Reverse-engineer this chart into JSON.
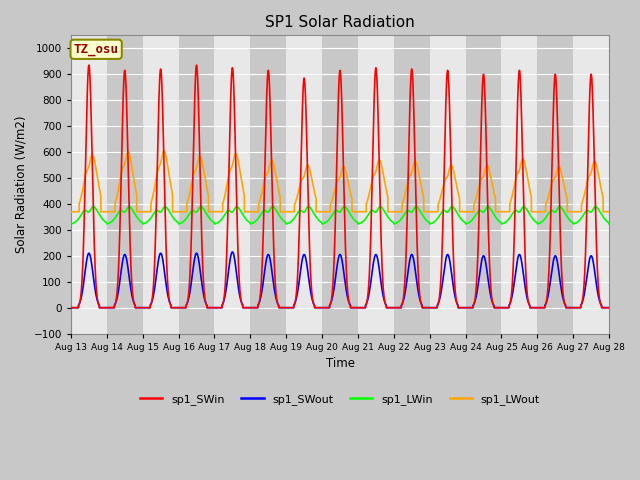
{
  "title": "SP1 Solar Radiation",
  "xlabel": "Time",
  "ylabel": "Solar Radiation (W/m2)",
  "ylim": [
    -100,
    1050
  ],
  "start_day": 13,
  "end_day": 28,
  "timezone_label": "TZ_osu",
  "legend_labels": [
    "sp1_SWin",
    "sp1_SWout",
    "sp1_LWin",
    "sp1_LWout"
  ],
  "legend_colors": [
    "#ff0000",
    "#0000ff",
    "#00ff00",
    "#ffa500"
  ],
  "fig_facecolor": "#c8c8c8",
  "plot_facecolor": "#e0e0e0",
  "band_dark": "#c8c8c8",
  "band_light": "#e8e8e8",
  "grid_color": "#ffffff",
  "sw_in_peaks": [
    935,
    915,
    920,
    935,
    925,
    915,
    885,
    915,
    925,
    920,
    915,
    900,
    915,
    900,
    900
  ],
  "sw_out_peaks": [
    210,
    205,
    210,
    210,
    215,
    205,
    205,
    205,
    205,
    205,
    205,
    200,
    205,
    200,
    200
  ],
  "lw_out_peaks": [
    600,
    612,
    615,
    595,
    605,
    580,
    560,
    555,
    580,
    575,
    560,
    560,
    585,
    555,
    575
  ],
  "lw_in_night": 320,
  "lw_in_day": 400,
  "lw_out_night": 370
}
